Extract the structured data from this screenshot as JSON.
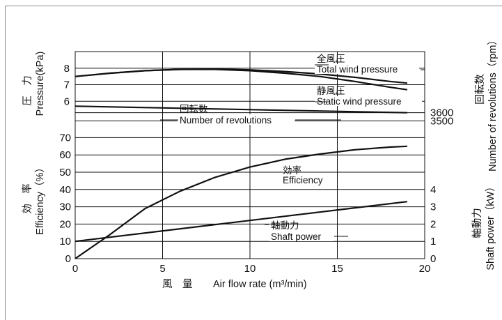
{
  "chart_data": {
    "type": "line",
    "xlabel_jp": "風　量",
    "xlabel": "Air flow rate (m³/min)",
    "xlim": [
      0,
      20
    ],
    "x_ticks": [
      "0",
      "5",
      "10",
      "15",
      "20"
    ],
    "panels": {
      "pressure": {
        "ylabel_jp": "圧　力",
        "ylabel": "Pressure(kPa)",
        "ylim": [
          5.8,
          8.5
        ],
        "y_ticks": [
          "6",
          "7",
          "8"
        ]
      },
      "revolutions": {
        "right_label_jp": "回転数",
        "right_label": "Number of revolutions（rpm）",
        "ylim": [
          3400,
          3700
        ],
        "right_ticks": [
          "3500",
          "3600"
        ]
      },
      "efficiency": {
        "ylabel_jp": "効　率",
        "ylabel": "Efficiency（%）",
        "ylim": [
          0,
          75
        ],
        "y_ticks": [
          "0",
          "10",
          "20",
          "30",
          "40",
          "50",
          "60",
          "70"
        ],
        "right_label_jp": "軸動力",
        "right_label": "Shaft power（kW）",
        "right_ylim": [
          0,
          7.5
        ],
        "right_ticks": [
          "0",
          "1",
          "2",
          "3",
          "4"
        ]
      }
    },
    "series": [
      {
        "name_jp": "全風圧",
        "name": "Total wind pressure",
        "panel": "pressure",
        "x": [
          0,
          2,
          4,
          6,
          8,
          10,
          12,
          14,
          16,
          18,
          19
        ],
        "y": [
          7.5,
          7.7,
          7.85,
          7.93,
          7.95,
          7.9,
          7.8,
          7.65,
          7.45,
          7.2,
          7.1
        ]
      },
      {
        "name_jp": "静風圧",
        "name": "Static wind pressure",
        "panel": "pressure",
        "x": [
          0,
          2,
          4,
          6,
          8,
          10,
          12,
          14,
          16,
          18,
          19
        ],
        "y": [
          7.5,
          7.7,
          7.85,
          7.93,
          7.93,
          7.85,
          7.7,
          7.5,
          7.2,
          6.85,
          6.7
        ]
      },
      {
        "name_jp": "回転数",
        "name": "Number of revolutions",
        "panel": "revolutions",
        "x": [
          0,
          19
        ],
        "y": [
          3680,
          3600
        ]
      },
      {
        "name_jp": "効率",
        "name": "Efficiency",
        "panel": "efficiency",
        "x": [
          0,
          1,
          2,
          4,
          6,
          8,
          10,
          12,
          14,
          16,
          18,
          19
        ],
        "y": [
          0,
          7,
          14,
          29,
          39,
          47,
          53,
          57.5,
          60.5,
          63,
          64.5,
          65
        ]
      },
      {
        "name_jp": "軸動力",
        "name": "Shaft power",
        "panel": "efficiency",
        "axis": "right",
        "x": [
          0,
          19
        ],
        "y": [
          1.0,
          3.3
        ]
      }
    ]
  }
}
